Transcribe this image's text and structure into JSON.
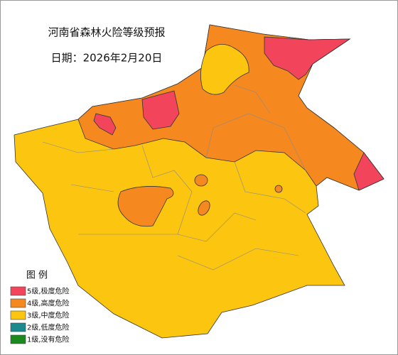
{
  "title": "河南省森林火险等级预报",
  "date": "日期：2026年2月20日",
  "legend": {
    "title": "图 例",
    "items": [
      {
        "label": "5级,极度危险",
        "color": "#f2455c"
      },
      {
        "label": "4级,高度危险",
        "color": "#f5891f"
      },
      {
        "label": "3级,中度危险",
        "color": "#fcc50f"
      },
      {
        "label": "2级,低度危险",
        "color": "#1b8a8f"
      },
      {
        "label": "1级,没有危险",
        "color": "#1a8a1e"
      }
    ]
  }
}
